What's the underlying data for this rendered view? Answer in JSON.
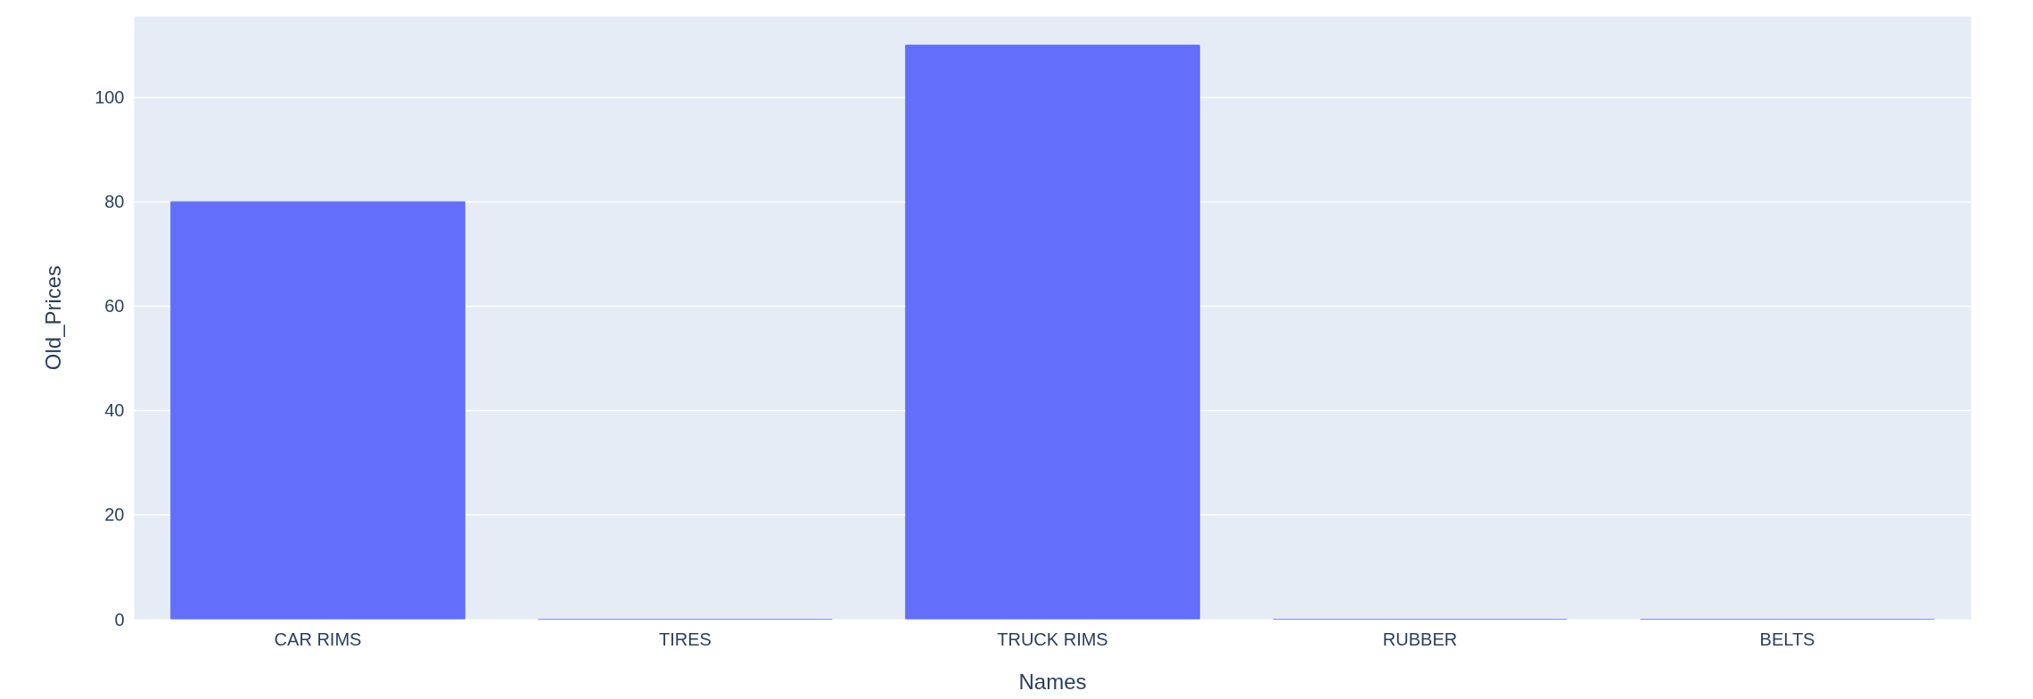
{
  "chart_data": {
    "type": "bar",
    "xlabel": "Names",
    "ylabel": "Old_Prices",
    "categories": [
      "CAR RIMS",
      "TIRES",
      "TRUCK RIMS",
      "RUBBER",
      "BELTS"
    ],
    "values": [
      80,
      0,
      110,
      0,
      0
    ],
    "color": "#636efa",
    "ylim": [
      0,
      115.5
    ],
    "yticks": [
      0,
      20,
      40,
      60,
      80,
      100
    ],
    "grid": "y"
  }
}
